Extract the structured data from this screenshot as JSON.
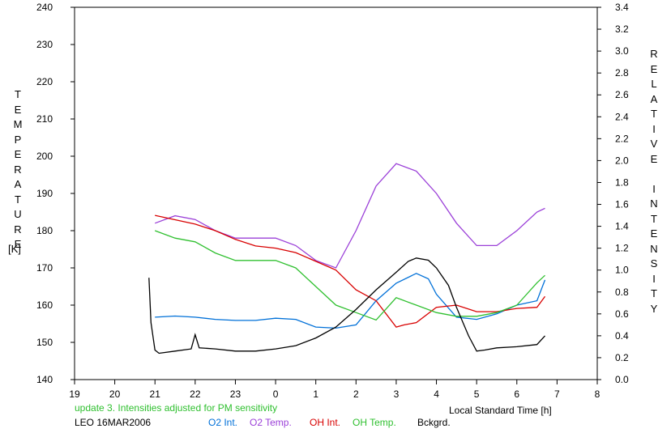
{
  "chart_data": {
    "type": "line",
    "ylabel_left": "TEMPERATURE",
    "ylabel_left_unit": "[K]",
    "ylabel_right": "RELATIVE INTENSITY",
    "xlabel": "Local Standard Time [h]",
    "note": "update 3. Intensities adjusted for PM sensitivity",
    "station_date": "LEO 16MAR2006",
    "x_ticks": [
      19,
      20,
      21,
      22,
      23,
      0,
      1,
      2,
      3,
      4,
      5,
      6,
      7,
      8
    ],
    "x_range": [
      19,
      32
    ],
    "ylim_left": [
      140,
      240
    ],
    "y_ticks_left": [
      140,
      150,
      160,
      170,
      180,
      190,
      200,
      210,
      220,
      230,
      240
    ],
    "ylim_right": [
      0,
      3.4
    ],
    "y_ticks_right": [
      "0.0",
      "0.2",
      "0.4",
      "0.6",
      "0.8",
      "1.0",
      "1.2",
      "1.4",
      "1.6",
      "1.8",
      "2.0",
      "2.2",
      "2.4",
      "2.6",
      "2.8",
      "3.0",
      "3.2",
      "3.4"
    ],
    "grid": false,
    "series": [
      {
        "name": "O2 Int.",
        "axis": "right",
        "color": "#0070d8",
        "x": [
          21.0,
          21.5,
          22.0,
          22.5,
          23.0,
          23.5,
          24.0,
          24.5,
          25.0,
          25.5,
          26.0,
          26.5,
          27.0,
          27.5,
          27.8,
          28.0,
          28.5,
          29.0,
          29.5,
          30.0,
          30.5,
          30.7
        ],
        "y": [
          0.57,
          0.58,
          0.57,
          0.55,
          0.54,
          0.54,
          0.56,
          0.55,
          0.48,
          0.47,
          0.5,
          0.72,
          0.88,
          0.97,
          0.92,
          0.78,
          0.57,
          0.55,
          0.6,
          0.68,
          0.72,
          0.91
        ]
      },
      {
        "name": "O2 Temp.",
        "axis": "left",
        "color": "#9b40d8",
        "x": [
          21.0,
          21.5,
          22.0,
          22.5,
          23.0,
          23.5,
          24.0,
          24.5,
          25.0,
          25.5,
          26.0,
          26.5,
          27.0,
          27.5,
          28.0,
          28.5,
          29.0,
          29.5,
          30.0,
          30.5,
          30.7
        ],
        "y": [
          182,
          184,
          183,
          180,
          178,
          178,
          178,
          176,
          172,
          170,
          180,
          192,
          198,
          196,
          190,
          182,
          176,
          176,
          180,
          185,
          186
        ]
      },
      {
        "name": "OH Int.",
        "axis": "right",
        "color": "#d80000",
        "x": [
          21.0,
          21.5,
          22.0,
          22.5,
          23.0,
          23.5,
          24.0,
          24.5,
          25.0,
          25.5,
          26.0,
          26.5,
          27.0,
          27.2,
          27.5,
          28.0,
          28.5,
          29.0,
          29.5,
          30.0,
          30.5,
          30.7
        ],
        "y": [
          1.5,
          1.46,
          1.42,
          1.36,
          1.28,
          1.22,
          1.2,
          1.16,
          1.08,
          1.0,
          0.82,
          0.72,
          0.48,
          0.5,
          0.52,
          0.66,
          0.68,
          0.62,
          0.62,
          0.65,
          0.66,
          0.76
        ]
      },
      {
        "name": "OH Temp.",
        "axis": "left",
        "color": "#30c030",
        "x": [
          21.0,
          21.5,
          22.0,
          22.5,
          23.0,
          23.5,
          24.0,
          24.5,
          25.0,
          25.5,
          26.0,
          26.5,
          27.0,
          27.5,
          28.0,
          28.5,
          29.0,
          29.5,
          30.0,
          30.5,
          30.7
        ],
        "y": [
          180,
          178,
          177,
          174,
          172,
          172,
          172,
          170,
          165,
          160,
          158,
          156,
          162,
          160,
          158,
          157,
          157,
          158,
          160,
          166,
          168
        ]
      },
      {
        "name": "Bckgrd.",
        "axis": "right",
        "color": "#000000",
        "x": [
          20.85,
          20.9,
          21.0,
          21.1,
          21.5,
          21.9,
          22.0,
          22.1,
          22.5,
          23.0,
          23.5,
          24.0,
          24.5,
          25.0,
          25.5,
          26.0,
          26.5,
          27.0,
          27.3,
          27.5,
          27.8,
          28.0,
          28.3,
          28.5,
          28.8,
          29.0,
          29.2,
          29.5,
          30.0,
          30.5,
          30.7
        ],
        "y": [
          0.93,
          0.52,
          0.27,
          0.24,
          0.26,
          0.28,
          0.41,
          0.29,
          0.28,
          0.26,
          0.26,
          0.28,
          0.31,
          0.38,
          0.48,
          0.64,
          0.82,
          0.98,
          1.08,
          1.11,
          1.09,
          1.02,
          0.86,
          0.66,
          0.4,
          0.26,
          0.27,
          0.29,
          0.3,
          0.32,
          0.4
        ]
      }
    ]
  }
}
